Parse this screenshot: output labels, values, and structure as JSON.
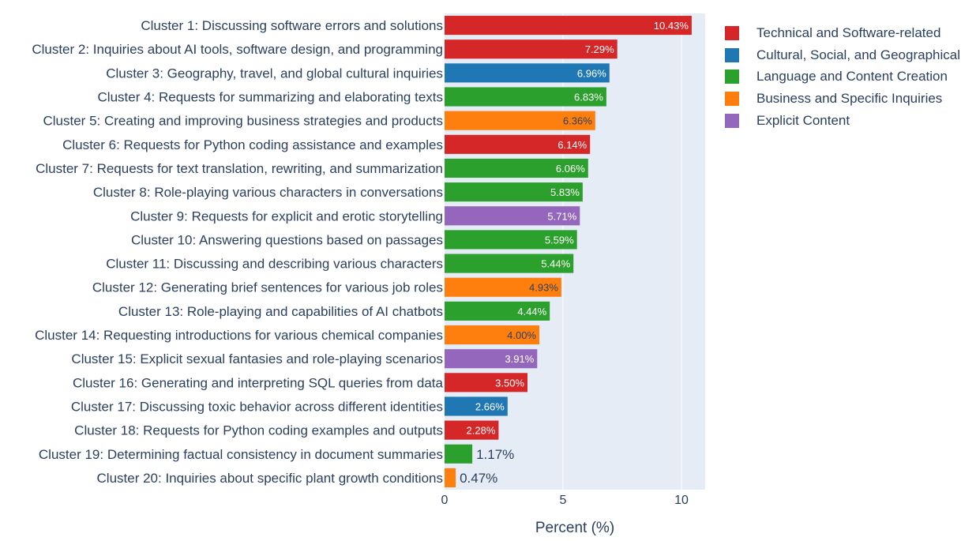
{
  "chart_data": {
    "type": "bar",
    "orientation": "horizontal",
    "xlabel": "Percent (%)",
    "ylabel": "",
    "xlim": [
      0,
      11
    ],
    "x_ticks": [
      0,
      5,
      10
    ],
    "grid": true,
    "legend_position": "right",
    "groups": [
      {
        "name": "Technical and Software-related",
        "color": "#d62728"
      },
      {
        "name": "Cultural, Social, and Geographical",
        "color": "#1f77b4"
      },
      {
        "name": "Language and Content Creation",
        "color": "#2ca02c"
      },
      {
        "name": "Business and Specific Inquiries",
        "color": "#ff7f0e"
      },
      {
        "name": "Explicit Content",
        "color": "#9467bd"
      }
    ],
    "bars": [
      {
        "category": "Cluster 1: Discussing software errors and solutions",
        "value": 10.43,
        "label": "10.43%",
        "group": 0
      },
      {
        "category": "Cluster 2: Inquiries about AI tools, software design, and programming",
        "value": 7.29,
        "label": "7.29%",
        "group": 0
      },
      {
        "category": "Cluster 3: Geography, travel, and global cultural inquiries",
        "value": 6.96,
        "label": "6.96%",
        "group": 1
      },
      {
        "category": "Cluster 4: Requests for summarizing and elaborating texts",
        "value": 6.83,
        "label": "6.83%",
        "group": 2
      },
      {
        "category": "Cluster 5: Creating and improving business strategies and products",
        "value": 6.36,
        "label": "6.36%",
        "group": 3
      },
      {
        "category": "Cluster 6: Requests for Python coding assistance and examples",
        "value": 6.14,
        "label": "6.14%",
        "group": 0
      },
      {
        "category": "Cluster 7: Requests for text translation, rewriting, and summarization",
        "value": 6.06,
        "label": "6.06%",
        "group": 2
      },
      {
        "category": "Cluster 8: Role-playing various characters in conversations",
        "value": 5.83,
        "label": "5.83%",
        "group": 2
      },
      {
        "category": "Cluster 9: Requests for explicit and erotic storytelling",
        "value": 5.71,
        "label": "5.71%",
        "group": 4
      },
      {
        "category": "Cluster 10: Answering questions based on passages",
        "value": 5.59,
        "label": "5.59%",
        "group": 2
      },
      {
        "category": "Cluster 11: Discussing and describing various characters",
        "value": 5.44,
        "label": "5.44%",
        "group": 2
      },
      {
        "category": "Cluster 12: Generating brief sentences for various job roles",
        "value": 4.93,
        "label": "4.93%",
        "group": 3
      },
      {
        "category": "Cluster 13: Role-playing and capabilities of AI chatbots",
        "value": 4.44,
        "label": "4.44%",
        "group": 2
      },
      {
        "category": "Cluster 14: Requesting introductions for various chemical companies",
        "value": 4.0,
        "label": "4.00%",
        "group": 3
      },
      {
        "category": "Cluster 15: Explicit sexual fantasies and role-playing scenarios",
        "value": 3.91,
        "label": "3.91%",
        "group": 4
      },
      {
        "category": "Cluster 16: Generating and interpreting SQL queries from data",
        "value": 3.5,
        "label": "3.50%",
        "group": 0
      },
      {
        "category": "Cluster 17: Discussing toxic behavior across different identities",
        "value": 2.66,
        "label": "2.66%",
        "group": 1
      },
      {
        "category": "Cluster 18: Requests for Python coding examples and outputs",
        "value": 2.28,
        "label": "2.28%",
        "group": 0
      },
      {
        "category": "Cluster 19: Determining factual consistency in document summaries",
        "value": 1.17,
        "label": "1.17%",
        "group": 2
      },
      {
        "category": "Cluster 20: Inquiries about specific plant growth conditions",
        "value": 0.47,
        "label": "0.47%",
        "group": 3
      }
    ]
  }
}
